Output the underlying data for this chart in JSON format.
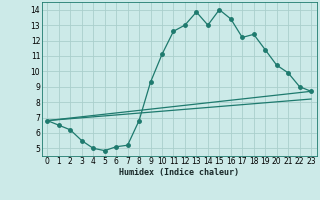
{
  "xlabel": "Humidex (Indice chaleur)",
  "bg_color": "#cceae8",
  "grid_color": "#aacfcc",
  "line_color": "#1e7a6e",
  "xlim": [
    -0.5,
    23.5
  ],
  "ylim": [
    4.5,
    14.5
  ],
  "xticks": [
    0,
    1,
    2,
    3,
    4,
    5,
    6,
    7,
    8,
    9,
    10,
    11,
    12,
    13,
    14,
    15,
    16,
    17,
    18,
    19,
    20,
    21,
    22,
    23
  ],
  "yticks": [
    5,
    6,
    7,
    8,
    9,
    10,
    11,
    12,
    13,
    14
  ],
  "line1_x": [
    0,
    1,
    2,
    3,
    4,
    5,
    6,
    7,
    8,
    9,
    10,
    11,
    12,
    13,
    14,
    15,
    16,
    17,
    18,
    19,
    20,
    21,
    22,
    23
  ],
  "line1_y": [
    6.8,
    6.5,
    6.2,
    5.5,
    5.0,
    4.85,
    5.1,
    5.2,
    6.8,
    9.3,
    11.1,
    12.6,
    13.0,
    13.85,
    13.0,
    14.0,
    13.4,
    12.2,
    12.4,
    11.4,
    10.4,
    9.9,
    9.0,
    8.7
  ],
  "line2_x": [
    0,
    23
  ],
  "line2_y": [
    6.8,
    8.7
  ],
  "line3_x": [
    0,
    23
  ],
  "line3_y": [
    6.8,
    8.2
  ],
  "marker_size": 2.5,
  "tick_fontsize": 5.5,
  "xlabel_fontsize": 6.0
}
